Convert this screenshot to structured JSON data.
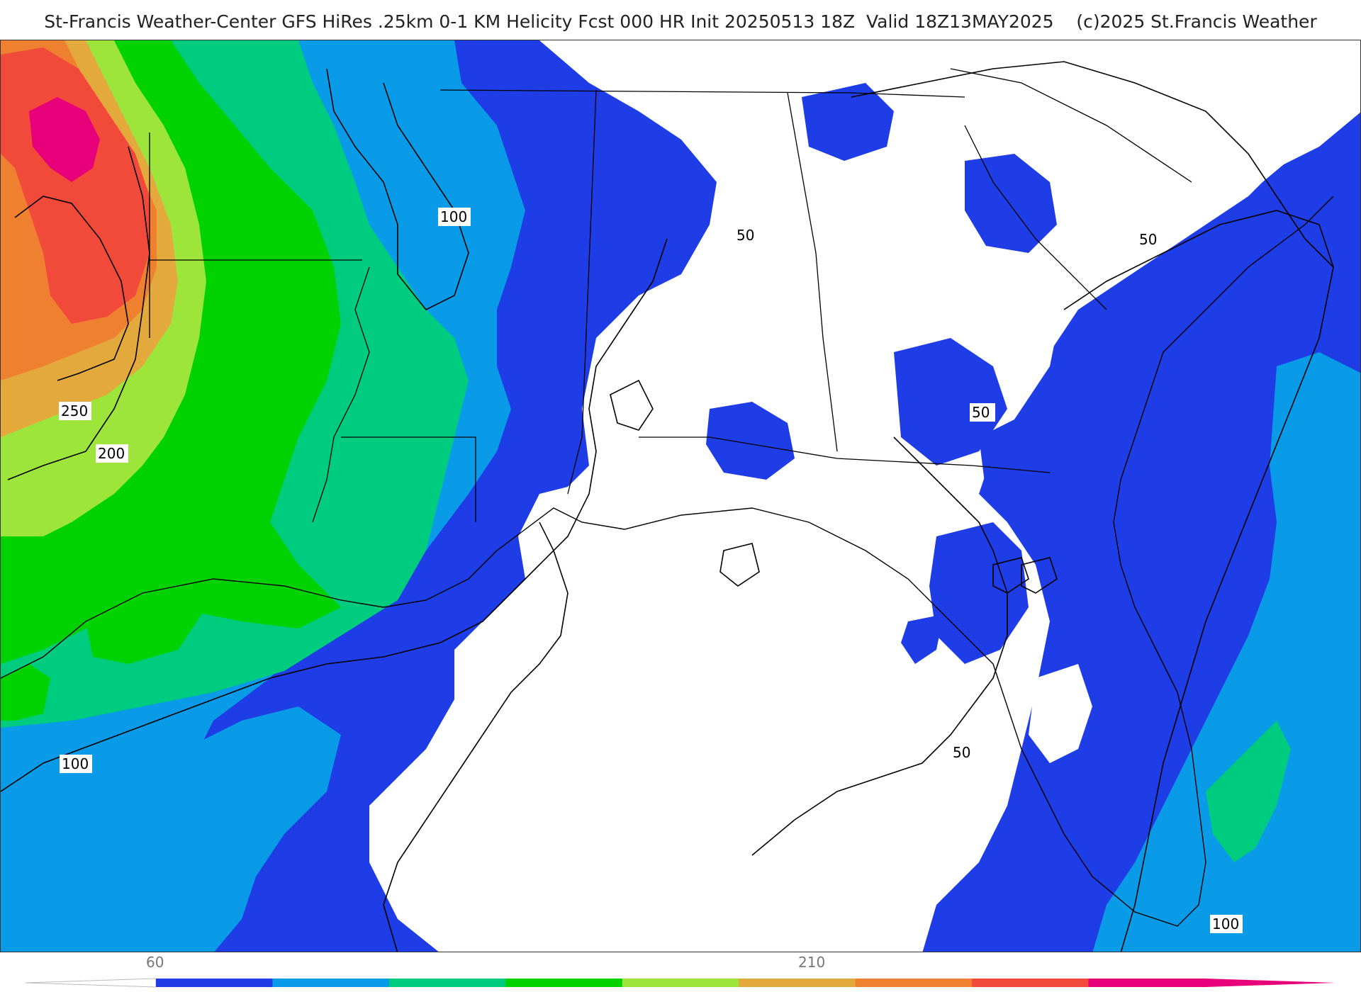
{
  "title": "St-Francis Weather-Center GFS HiRes .25km 0-1 KM Helicity Fcst 000 HR Init 20250513 18Z  Valid 18Z13MAY2025    (c)2025 St.Francis Weather",
  "contour_labels": [
    "50",
    "50",
    "50",
    "50",
    "100",
    "100",
    "100",
    "200",
    "250"
  ],
  "colorbar": {
    "tick_labels": [
      "60",
      "210"
    ],
    "colors": [
      "#1f3de6",
      "#0a9be8",
      "#00cc80",
      "#00d200",
      "#9de43b",
      "#e3a93d",
      "#ee8030",
      "#f24a3a",
      "#e8007a"
    ]
  },
  "map_colors": {
    "band_50": "#1f3de6",
    "band_80": "#0a9be8",
    "band_110": "#00cc80",
    "band_140": "#00d200",
    "band_170": "#9de43b",
    "band_200": "#e3a93d",
    "band_230": "#ee8030",
    "band_260": "#f24a3a",
    "band_290": "#e8007a"
  }
}
